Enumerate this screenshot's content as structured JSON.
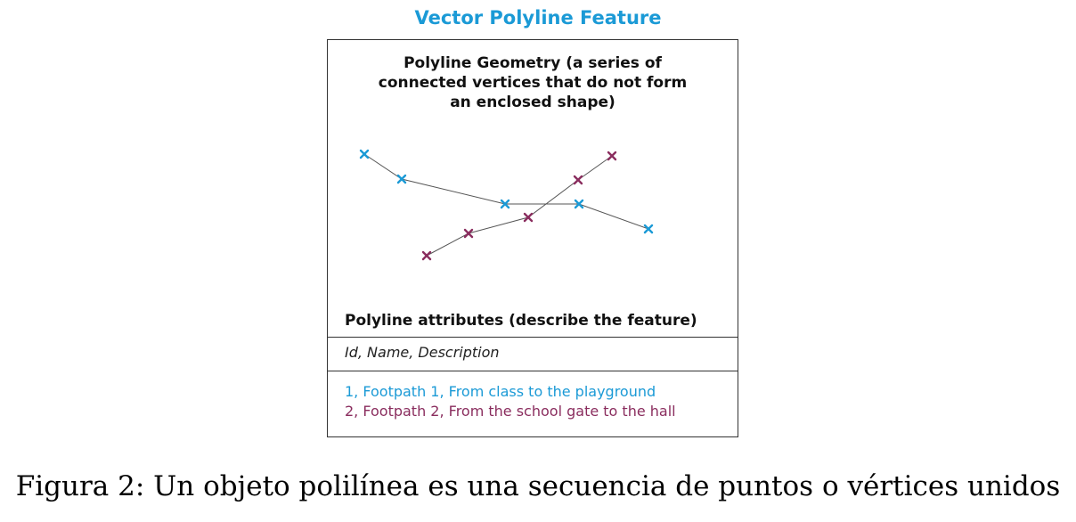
{
  "title": "Vector Polyline Feature",
  "geometry_heading": {
    "line1": "Polyline Geometry (a series of",
    "line2": "connected vertices that do not form",
    "line3": "an enclosed shape)"
  },
  "attributes": {
    "heading": "Polyline attributes (describe the feature)",
    "fields": "Id, Name, Description",
    "rows": [
      "1, Footpath 1, From class to the playground",
      "2, Footpath 2, From the school gate to the hall"
    ]
  },
  "colors": {
    "title": "#1b9ad6",
    "polyline_1": "#1b9ad6",
    "polyline_2": "#8a2d5e",
    "line": "#555555"
  },
  "caption": "Figura 2: Un objeto polilínea es una secuencia de puntos o vértices unidos"
}
